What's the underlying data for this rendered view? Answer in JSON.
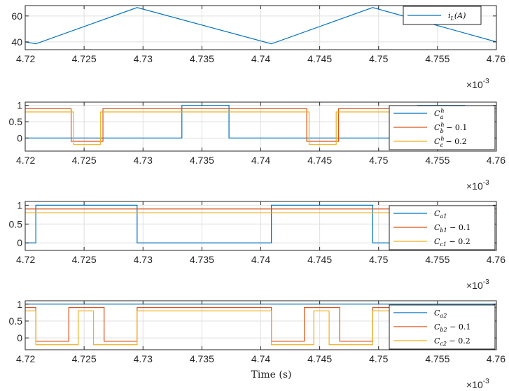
{
  "colors": {
    "blue": "#0072BD",
    "orange": "#D95319",
    "yellow": "#EDB120",
    "grid": "#DFDFDF",
    "axis": "#262626"
  },
  "chart_data": [
    {
      "type": "line",
      "x_label": "",
      "x_range": [
        4.72,
        4.76
      ],
      "x_ticks": [
        "4.72",
        "4.725",
        "4.73",
        "4.735",
        "4.74",
        "4.745",
        "4.75",
        "4.755",
        "4.76"
      ],
      "x_multiplier": "×10",
      "x_exponent": "-3",
      "y_range": [
        34,
        68
      ],
      "y_ticks": [
        {
          "value": 40,
          "label": "40"
        },
        {
          "value": 60,
          "label": "60"
        }
      ],
      "grid": true,
      "legend_position": "top-right",
      "series": [
        {
          "name": "iL(A)",
          "legend_main": "i",
          "legend_sub": "L",
          "legend_sup": "",
          "legend_suffix": "(A)",
          "color": "#0072BD",
          "x": [
            4.72,
            4.7209,
            4.7295,
            4.7409,
            4.7495,
            4.76
          ],
          "y": [
            40,
            38.5,
            66.5,
            38.5,
            66.5,
            40
          ]
        }
      ]
    },
    {
      "type": "line",
      "x_label": "",
      "x_range": [
        4.72,
        4.76
      ],
      "x_ticks": [
        "4.72",
        "4.725",
        "4.73",
        "4.735",
        "4.74",
        "4.745",
        "4.75",
        "4.755",
        "4.76"
      ],
      "x_multiplier": "×10",
      "x_exponent": "-3",
      "y_range": [
        -0.4,
        1.1
      ],
      "y_ticks": [
        {
          "value": 1,
          "label": "1"
        },
        {
          "value": 0.5,
          "label": "0.5"
        },
        {
          "value": 0,
          "label": "0"
        }
      ],
      "grid": true,
      "legend_position": "right",
      "series": [
        {
          "name": "C_a^h",
          "legend_main": "C",
          "legend_sub": "a",
          "legend_sup": "h",
          "legend_suffix": "",
          "color": "#0072BD",
          "x": [
            4.72,
            4.7333,
            4.7333,
            4.7373,
            4.7373,
            4.7533,
            4.7533,
            4.7573,
            4.7573,
            4.76
          ],
          "y": [
            0,
            0,
            1,
            1,
            0,
            0,
            1,
            1,
            0,
            0
          ]
        },
        {
          "name": "C_b^h - 0.1",
          "legend_main": "C",
          "legend_sub": "b",
          "legend_sup": "h",
          "legend_suffix": " − 0.1",
          "color": "#D95319",
          "x": [
            4.72,
            4.7239,
            4.7239,
            4.7266,
            4.7266,
            4.7439,
            4.7439,
            4.7466,
            4.7466,
            4.76
          ],
          "y": [
            0.9,
            0.9,
            -0.1,
            -0.1,
            0.9,
            0.9,
            -0.1,
            -0.1,
            0.9,
            0.9
          ]
        },
        {
          "name": "C_c^h - 0.2",
          "legend_main": "C",
          "legend_sub": "c",
          "legend_sup": "h",
          "legend_suffix": " − 0.2",
          "color": "#EDB120",
          "x": [
            4.72,
            4.7241,
            4.7241,
            4.7264,
            4.7264,
            4.7441,
            4.7441,
            4.7464,
            4.7464,
            4.76
          ],
          "y": [
            0.8,
            0.8,
            -0.2,
            -0.2,
            0.8,
            0.8,
            -0.2,
            -0.2,
            0.8,
            0.8
          ]
        }
      ]
    },
    {
      "type": "line",
      "x_label": "",
      "x_range": [
        4.72,
        4.76
      ],
      "x_ticks": [
        "4.72",
        "4.725",
        "4.73",
        "4.735",
        "4.74",
        "4.745",
        "4.75",
        "4.755",
        "4.76"
      ],
      "x_multiplier": "×10",
      "x_exponent": "-3",
      "y_range": [
        -0.2,
        1.1
      ],
      "y_ticks": [
        {
          "value": 1,
          "label": "1"
        },
        {
          "value": 0.5,
          "label": "0.5"
        },
        {
          "value": 0,
          "label": "0"
        }
      ],
      "grid": true,
      "legend_position": "right",
      "series": [
        {
          "name": "C_a1",
          "legend_main": "C",
          "legend_sub": "a1",
          "legend_sup": "",
          "legend_suffix": "",
          "color": "#0072BD",
          "x": [
            4.72,
            4.7209,
            4.7209,
            4.7295,
            4.7295,
            4.7409,
            4.7409,
            4.7495,
            4.7495,
            4.76
          ],
          "y": [
            0,
            0,
            1,
            1,
            0,
            0,
            1,
            1,
            0,
            0
          ]
        },
        {
          "name": "C_b1 - 0.1",
          "legend_main": "C",
          "legend_sub": "b1",
          "legend_sup": "",
          "legend_suffix": " − 0.1",
          "color": "#D95319",
          "x": [
            4.72,
            4.76
          ],
          "y": [
            0.9,
            0.9
          ]
        },
        {
          "name": "C_c1 - 0.2",
          "legend_main": "C",
          "legend_sub": "c1",
          "legend_sup": "",
          "legend_suffix": " − 0.2",
          "color": "#EDB120",
          "x": [
            4.72,
            4.76
          ],
          "y": [
            0.8,
            0.8
          ]
        }
      ]
    },
    {
      "type": "line",
      "x_label": "Time (s)",
      "x_range": [
        4.72,
        4.76
      ],
      "x_ticks": [
        "4.72",
        "4.725",
        "4.73",
        "4.735",
        "4.74",
        "4.745",
        "4.75",
        "4.755",
        "4.76"
      ],
      "x_multiplier": "×10",
      "x_exponent": "-3",
      "y_range": [
        -0.35,
        1.1
      ],
      "y_ticks": [
        {
          "value": 1,
          "label": "1"
        },
        {
          "value": 0.5,
          "label": "0.5"
        },
        {
          "value": 0,
          "label": "0"
        }
      ],
      "grid": true,
      "legend_position": "right",
      "series": [
        {
          "name": "C_a2",
          "legend_main": "C",
          "legend_sub": "a2",
          "legend_sup": "",
          "legend_suffix": "",
          "color": "#0072BD",
          "x": [
            4.72,
            4.76
          ],
          "y": [
            1,
            1
          ]
        },
        {
          "name": "C_b2 - 0.1",
          "legend_main": "C",
          "legend_sub": "b2",
          "legend_sup": "",
          "legend_suffix": " − 0.1",
          "color": "#D95319",
          "x": [
            4.72,
            4.7209,
            4.7209,
            4.7237,
            4.7237,
            4.7267,
            4.7267,
            4.7295,
            4.7295,
            4.7409,
            4.7409,
            4.7437,
            4.7437,
            4.7467,
            4.7467,
            4.7495,
            4.7495,
            4.76
          ],
          "y": [
            0.9,
            0.9,
            -0.1,
            -0.1,
            0.9,
            0.9,
            -0.1,
            -0.1,
            0.9,
            0.9,
            -0.1,
            -0.1,
            0.9,
            0.9,
            -0.1,
            -0.1,
            0.9,
            0.9
          ]
        },
        {
          "name": "C_c2 - 0.2",
          "legend_main": "C",
          "legend_sub": "c2",
          "legend_sup": "",
          "legend_suffix": " − 0.2",
          "color": "#EDB120",
          "x": [
            4.72,
            4.7209,
            4.7209,
            4.7245,
            4.7245,
            4.7258,
            4.7258,
            4.7295,
            4.7295,
            4.7409,
            4.7409,
            4.7445,
            4.7445,
            4.7458,
            4.7458,
            4.7495,
            4.7495,
            4.76
          ],
          "y": [
            0.8,
            0.8,
            -0.2,
            -0.2,
            0.8,
            0.8,
            -0.2,
            -0.2,
            0.8,
            0.8,
            -0.2,
            -0.2,
            0.8,
            0.8,
            -0.2,
            -0.2,
            0.8,
            0.8
          ]
        }
      ]
    }
  ]
}
